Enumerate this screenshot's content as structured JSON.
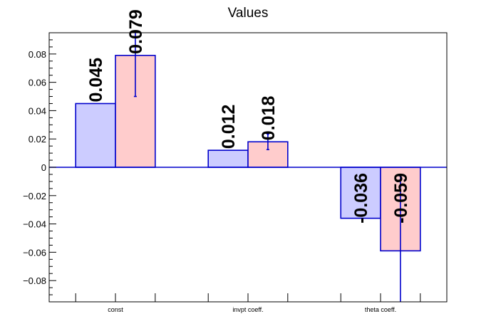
{
  "chart_data": {
    "type": "bar",
    "title": "Values",
    "categories": [
      "const",
      "invpt coeff.",
      "theta coeff."
    ],
    "series": [
      {
        "values": [
          0.045,
          0.012,
          -0.036
        ],
        "labels": [
          "0.045",
          "0.012",
          "-0.036"
        ],
        "color": "#ccccff"
      },
      {
        "values": [
          0.079,
          0.018,
          -0.059
        ],
        "labels": [
          "0.079",
          "0.018",
          "-0.059"
        ],
        "color": "#ffcccc",
        "errors": [
          0.029,
          0.0055,
          0.053
        ]
      }
    ],
    "ylim": [
      -0.095,
      0.095
    ],
    "yticks": [
      -0.08,
      -0.06,
      -0.04,
      -0.02,
      0,
      0.02,
      0.04,
      0.06,
      0.08
    ],
    "ytick_labels": [
      "−0.08",
      "−0.06",
      "−0.04",
      "−0.02",
      "0",
      "0.02",
      "0.04",
      "0.06",
      "0.08"
    ],
    "xlabel": "",
    "ylabel": "",
    "grid": false,
    "legend": "none",
    "edge_color": "#0000cc"
  }
}
